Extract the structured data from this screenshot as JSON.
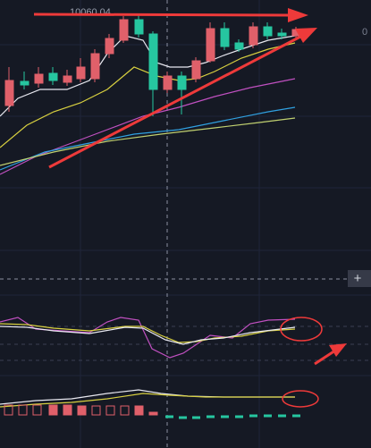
{
  "price_label": "10060.04",
  "zoom_button": "+",
  "edge_label": "0"
}
